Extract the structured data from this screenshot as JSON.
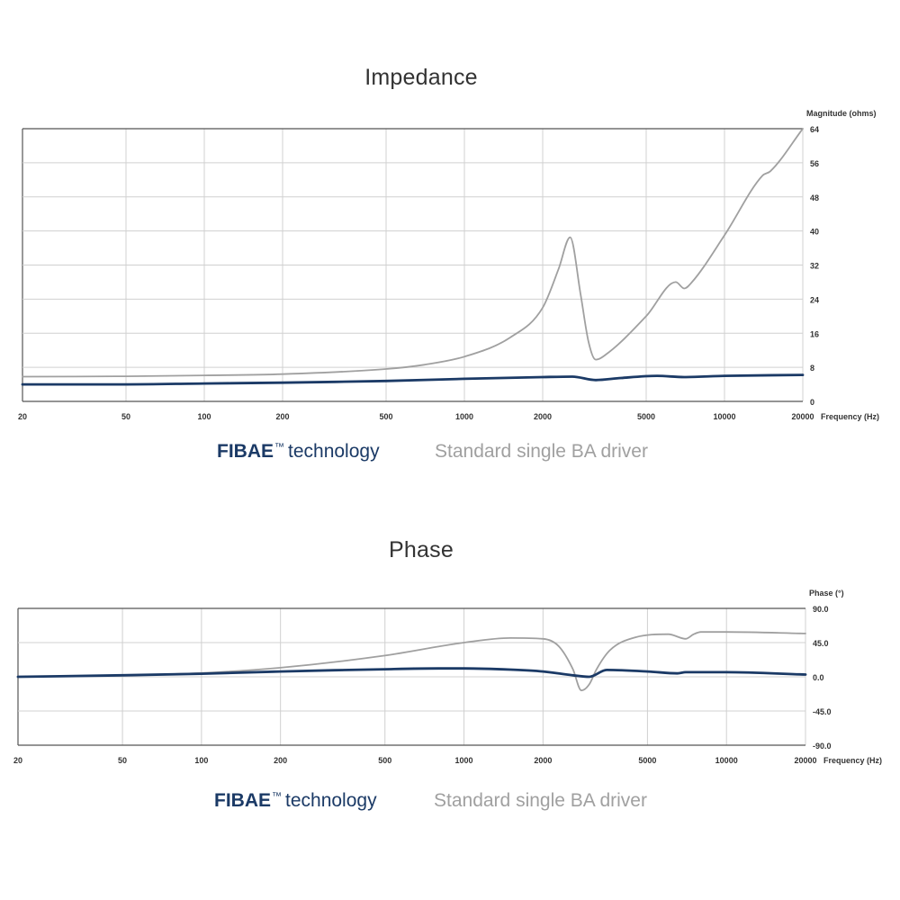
{
  "chart_data": [
    {
      "type": "line",
      "title": "Impedance",
      "ylabel": "Magnitude (ohms)",
      "xlabel": "Frequency (Hz)",
      "xscale": "log",
      "xlim": [
        20,
        20000
      ],
      "ylim": [
        0,
        64
      ],
      "x_ticks": [
        "20",
        "50",
        "100",
        "200",
        "500",
        "1000",
        "2000",
        "5000",
        "10000",
        "20000"
      ],
      "x_tick_values": [
        20,
        50,
        100,
        200,
        500,
        1000,
        2000,
        5000,
        10000,
        20000
      ],
      "y_ticks": [
        "0",
        "8",
        "16",
        "24",
        "32",
        "40",
        "48",
        "56",
        "64"
      ],
      "y_tick_values": [
        0,
        8,
        16,
        24,
        32,
        40,
        48,
        56,
        64
      ],
      "grid": true,
      "legend_position": "bottom",
      "series": [
        {
          "name": "FIBAE™ technology",
          "color": "#1b3a66",
          "x": [
            20,
            50,
            100,
            200,
            500,
            1000,
            2000,
            2600,
            3200,
            4000,
            5500,
            7000,
            10000,
            20000
          ],
          "y": [
            4.0,
            4.0,
            4.2,
            4.4,
            4.8,
            5.3,
            5.7,
            5.8,
            5.0,
            5.5,
            6.0,
            5.7,
            6.0,
            6.2
          ]
        },
        {
          "name": "Standard single BA driver",
          "color": "#a0a0a0",
          "x": [
            20,
            50,
            100,
            200,
            500,
            700,
            1000,
            1500,
            2000,
            2300,
            2550,
            2800,
            3000,
            3200,
            3500,
            5000,
            6500,
            7000,
            7500,
            10000,
            14000,
            15000,
            20000
          ],
          "y": [
            5.8,
            5.9,
            6.1,
            6.4,
            7.6,
            8.6,
            10.5,
            15.0,
            22.0,
            31.0,
            38.5,
            25.0,
            14.0,
            9.8,
            11.0,
            20.0,
            28.0,
            26.5,
            28.0,
            39.0,
            53.0,
            54.0,
            64.0
          ]
        }
      ]
    },
    {
      "type": "line",
      "title": "Phase",
      "ylabel": "Phase (°)",
      "xlabel": "Frequency (Hz)",
      "xscale": "log",
      "xlim": [
        20,
        20000
      ],
      "ylim": [
        -90,
        90
      ],
      "x_ticks": [
        "20",
        "50",
        "100",
        "200",
        "500",
        "1000",
        "2000",
        "5000",
        "10000",
        "20000"
      ],
      "x_tick_values": [
        20,
        50,
        100,
        200,
        500,
        1000,
        2000,
        5000,
        10000,
        20000
      ],
      "y_ticks": [
        "90.0",
        "45.0",
        "0.0",
        "-45.0",
        "-90.0"
      ],
      "y_tick_values": [
        90,
        45,
        0,
        -45,
        -90
      ],
      "grid": true,
      "legend_position": "bottom",
      "series": [
        {
          "name": "FIBAE™ technology",
          "color": "#1b3a66",
          "x": [
            20,
            50,
            100,
            200,
            500,
            800,
            1000,
            1500,
            2000,
            2600,
            3000,
            3500,
            5000,
            6500,
            7000,
            10000,
            20000
          ],
          "y": [
            0,
            2,
            4,
            7,
            10,
            11,
            11,
            9.5,
            7,
            2,
            0,
            9,
            7,
            4.5,
            6,
            6,
            3
          ]
        },
        {
          "name": "Standard single BA driver",
          "color": "#a0a0a0",
          "x": [
            20,
            50,
            100,
            200,
            500,
            1000,
            1500,
            2000,
            2300,
            2600,
            2800,
            3000,
            3200,
            3600,
            4500,
            6000,
            7000,
            7500,
            8000,
            10000,
            20000
          ],
          "y": [
            0,
            2,
            5,
            12,
            28,
            45,
            51,
            50,
            40,
            10,
            -18,
            -10,
            10,
            35,
            52,
            56,
            50,
            56,
            59,
            59,
            57
          ]
        }
      ]
    }
  ],
  "legend": {
    "fibae_brand": "FIBAE",
    "fibae_tm": "™",
    "fibae_rest": "technology",
    "standard": "Standard single BA driver"
  }
}
